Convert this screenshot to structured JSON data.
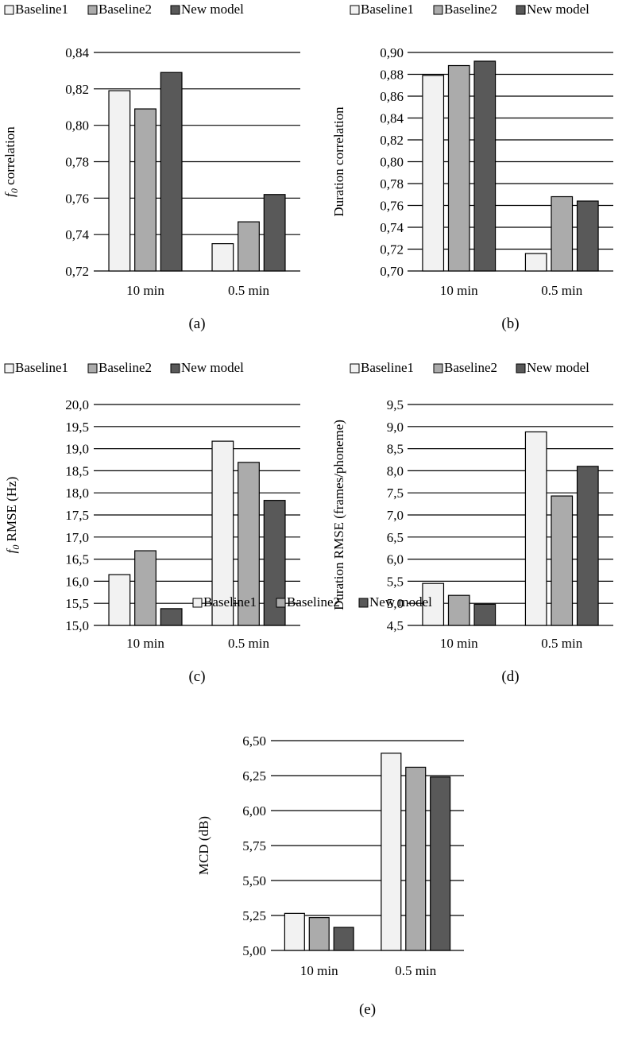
{
  "legend": [
    "Baseline1",
    "Baseline2",
    "New model"
  ],
  "colors": {
    "series": [
      "#f2f2f2",
      "#ababab",
      "#595959"
    ],
    "stroke": "#000000",
    "grid": "#000000"
  },
  "chart_data": [
    {
      "type": "bar",
      "panel_label": "(a)",
      "ylabel": "f0 correlation",
      "ylabel_base": "f",
      "ylabel_sub": "0",
      "ylabel_rest": " correlation",
      "categories": [
        "10 min",
        "0.5 min"
      ],
      "series": [
        {
          "name": "Baseline1",
          "values": [
            0.819,
            0.735
          ]
        },
        {
          "name": "Baseline2",
          "values": [
            0.809,
            0.747
          ]
        },
        {
          "name": "New model",
          "values": [
            0.829,
            0.762
          ]
        }
      ],
      "ylim": [
        0.72,
        0.84
      ],
      "yticks": [
        "0,72",
        "0,74",
        "0,76",
        "0,78",
        "0,80",
        "0,82",
        "0,84"
      ],
      "grid": true,
      "legend_position": "top"
    },
    {
      "type": "bar",
      "panel_label": "(b)",
      "ylabel": "Duration correlation",
      "categories": [
        "10 min",
        "0.5 min"
      ],
      "series": [
        {
          "name": "Baseline1",
          "values": [
            0.879,
            0.716
          ]
        },
        {
          "name": "Baseline2",
          "values": [
            0.888,
            0.768
          ]
        },
        {
          "name": "New model",
          "values": [
            0.892,
            0.764
          ]
        }
      ],
      "ylim": [
        0.7,
        0.9
      ],
      "yticks": [
        "0,70",
        "0,72",
        "0,74",
        "0,76",
        "0,78",
        "0,80",
        "0,82",
        "0,84",
        "0,86",
        "0,88",
        "0,90"
      ],
      "grid": true,
      "legend_position": "top"
    },
    {
      "type": "bar",
      "panel_label": "(c)",
      "ylabel": "f0 RMSE (Hz)",
      "ylabel_base": "f",
      "ylabel_sub": "0",
      "ylabel_rest": " RMSE (Hz)",
      "categories": [
        "10 min",
        "0.5 min"
      ],
      "series": [
        {
          "name": "Baseline1",
          "values": [
            16.15,
            19.17
          ]
        },
        {
          "name": "Baseline2",
          "values": [
            16.69,
            18.69
          ]
        },
        {
          "name": "New model",
          "values": [
            15.38,
            17.83
          ]
        }
      ],
      "ylim": [
        15.0,
        20.0
      ],
      "yticks": [
        "15,0",
        "15,5",
        "16,0",
        "16,5",
        "17,0",
        "17,5",
        "18,0",
        "18,5",
        "19,0",
        "19,5",
        "20,0"
      ],
      "grid": true,
      "legend_position": "top"
    },
    {
      "type": "bar",
      "panel_label": "(d)",
      "ylabel": "Duration RMSE (frames/phoneme)",
      "categories": [
        "10 min",
        "0.5 min"
      ],
      "series": [
        {
          "name": "Baseline1",
          "values": [
            5.45,
            8.88
          ]
        },
        {
          "name": "Baseline2",
          "values": [
            5.18,
            7.43
          ]
        },
        {
          "name": "New model",
          "values": [
            4.98,
            8.1
          ]
        }
      ],
      "ylim": [
        4.5,
        9.5
      ],
      "yticks": [
        "4,5",
        "5,0",
        "5,5",
        "6,0",
        "6,5",
        "7,0",
        "7,5",
        "8,0",
        "8,5",
        "9,0",
        "9,5"
      ],
      "grid": true,
      "legend_position": "top"
    },
    {
      "type": "bar",
      "panel_label": "(e)",
      "ylabel": "MCD (dB)",
      "categories": [
        "10 min",
        "0.5 min"
      ],
      "series": [
        {
          "name": "Baseline1",
          "values": [
            5.265,
            6.41
          ]
        },
        {
          "name": "Baseline2",
          "values": [
            5.235,
            6.31
          ]
        },
        {
          "name": "New model",
          "values": [
            5.165,
            6.24
          ]
        }
      ],
      "ylim": [
        5.0,
        6.5
      ],
      "yticks": [
        "5,00",
        "5,25",
        "5,50",
        "5,75",
        "6,00",
        "6,25",
        "6,50"
      ],
      "grid": true,
      "legend_position": "top"
    }
  ]
}
